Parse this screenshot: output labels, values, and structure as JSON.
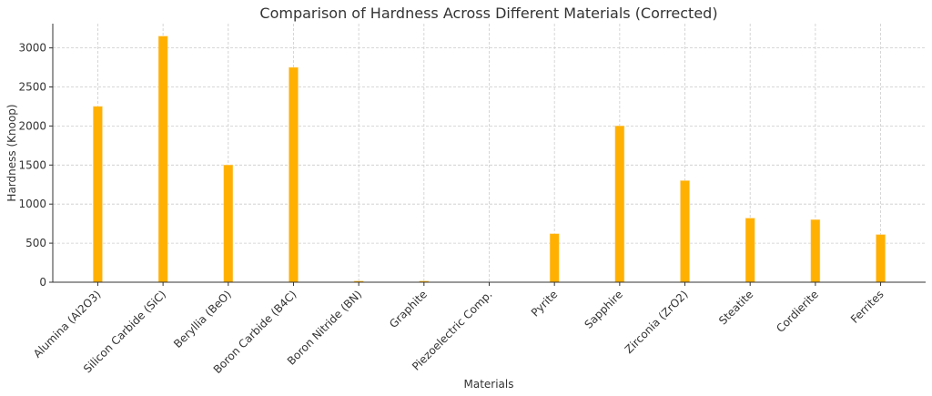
{
  "chart_data": {
    "type": "bar",
    "title": "Comparison of Hardness Across Different Materials (Corrected)",
    "xlabel": "Materials",
    "ylabel": "Hardness (Knoop)",
    "categories": [
      "Alumina (Al2O3)",
      "Silicon Carbide (SiC)",
      "Beryllia (BeO)",
      "Boron Carbide (B4C)",
      "Boron Nitride (BN)",
      "Graphite",
      "Piezoelectric Comp.",
      "Pyrite",
      "Sapphire",
      "Zirconia (ZrO2)",
      "Steatite",
      "Cordierite",
      "Ferrites"
    ],
    "values": [
      2250,
      3150,
      1500,
      2750,
      15,
      15,
      0,
      620,
      2000,
      1300,
      820,
      800,
      610
    ],
    "ylim": [
      0,
      3310
    ],
    "yticks": [
      0,
      500,
      1000,
      1500,
      2000,
      2500,
      3000
    ],
    "grid": true,
    "bar_color": "#FFB000"
  }
}
